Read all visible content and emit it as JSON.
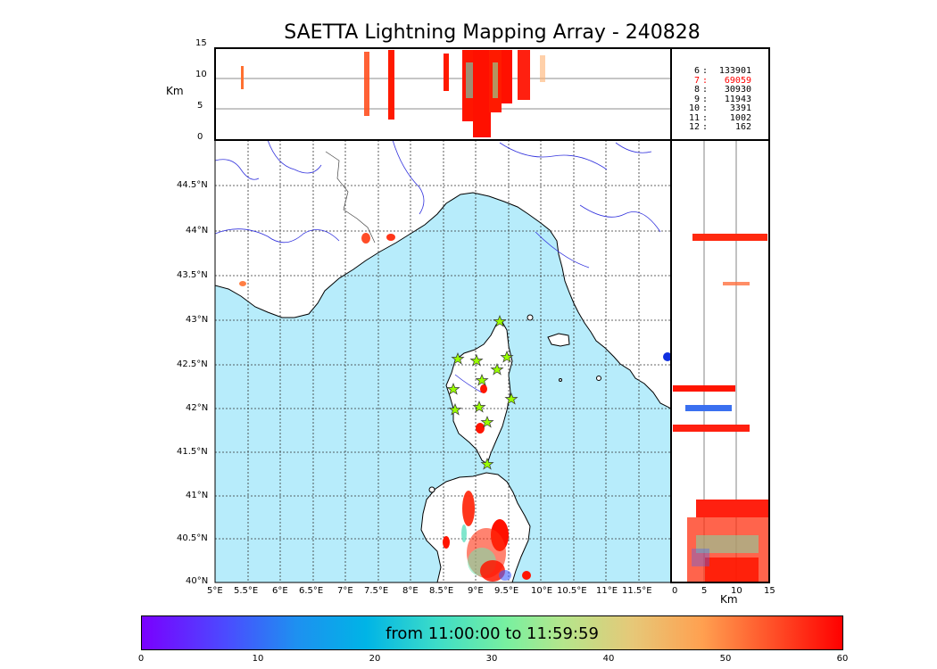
{
  "title": "SAETTA Lightning Mapping Array - 240828",
  "top_panel": {
    "unit": "Km",
    "y_ticks": [
      "15",
      "10",
      "5",
      "0"
    ]
  },
  "right_panel": {
    "unit": "Km",
    "x_ticks": [
      "0",
      "5",
      "10",
      "15"
    ]
  },
  "map": {
    "lat_labels": [
      "44.5°N",
      "44°N",
      "43.5°N",
      "43°N",
      "42.5°N",
      "42°N",
      "41.5°N",
      "41°N",
      "40.5°N",
      "40°N"
    ],
    "lon_labels": [
      "5°E",
      "5.5°E",
      "6°E",
      "6.5°E",
      "7°E",
      "7.5°E",
      "8°E",
      "8.5°E",
      "9°E",
      "9.5°E",
      "10°E",
      "10.5°E",
      "11°E",
      "11.5°E"
    ],
    "colors": {
      "sea": "#b7ecfb",
      "land": "#ffffff",
      "rivers": "#3333dd",
      "coast": "#000000",
      "stations": "#99ff00"
    }
  },
  "stats": [
    {
      "n": "6",
      "sep": ":",
      "v": "133901",
      "color": "#000000"
    },
    {
      "n": "7",
      "sep": ":",
      "v": "69059",
      "color": "#ff0000"
    },
    {
      "n": "8",
      "sep": ":",
      "v": "30930",
      "color": "#000000"
    },
    {
      "n": "9",
      "sep": ":",
      "v": "11943",
      "color": "#000000"
    },
    {
      "n": "10",
      "sep": ":",
      "v": "3391",
      "color": "#000000"
    },
    {
      "n": "11",
      "sep": ":",
      "v": "1002",
      "color": "#000000"
    },
    {
      "n": "12",
      "sep": ":",
      "v": "162",
      "color": "#000000"
    }
  ],
  "colorbar": {
    "text": "from 11:00:00 to 11:59:59",
    "ticks": [
      "0",
      "10",
      "20",
      "30",
      "40",
      "50",
      "60"
    ]
  }
}
